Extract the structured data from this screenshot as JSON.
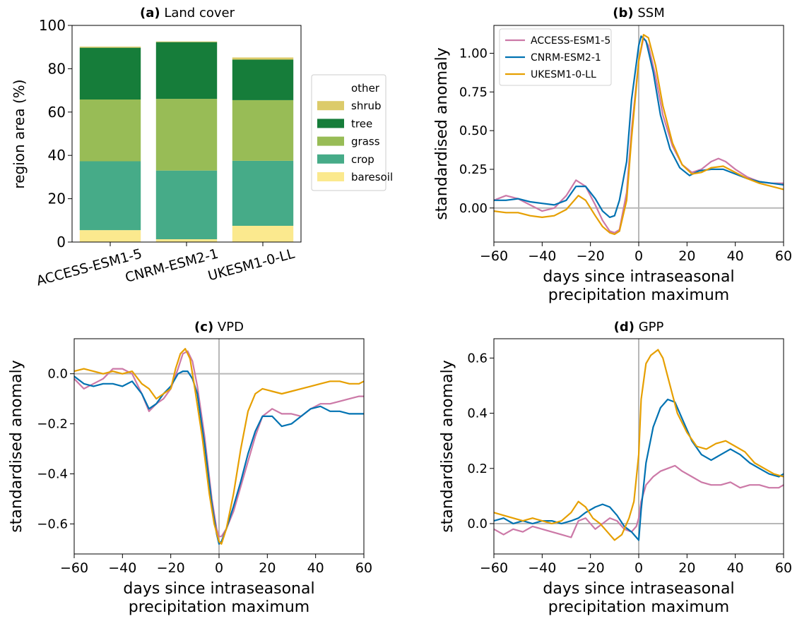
{
  "chart_data": [
    {
      "panel": "a",
      "type": "bar",
      "title_prefix": "(a)",
      "title": "Land cover",
      "xlabel": "",
      "ylabel": "region area (%)",
      "ylim": [
        0,
        100
      ],
      "yticks": [
        0,
        20,
        40,
        60,
        80,
        100
      ],
      "categories": [
        "ACCESS-ESM1-5",
        "CNRM-ESM2-1",
        "UKESM1-0-LL"
      ],
      "stacked": true,
      "legend_position": "right, outside axes",
      "series": [
        {
          "name": "baresoil",
          "color": "#fbe98e",
          "values": [
            5.5,
            1.3,
            7.5
          ]
        },
        {
          "name": "crop",
          "color": "#46ab88",
          "values": [
            31.8,
            31.7,
            30.0
          ]
        },
        {
          "name": "grass",
          "color": "#98bc56",
          "values": [
            28.5,
            33.1,
            28.0
          ]
        },
        {
          "name": "tree",
          "color": "#167d3a",
          "values": [
            23.9,
            26.2,
            18.7
          ]
        },
        {
          "name": "shrub",
          "color": "#dccb6a",
          "values": [
            0.5,
            0.3,
            1.0
          ]
        },
        {
          "name": "other",
          "color": "#ffffff",
          "values": [
            0,
            0,
            0
          ]
        }
      ]
    },
    {
      "panel": "b",
      "type": "line",
      "title_prefix": "(b)",
      "title": "SSM",
      "xlabel": "days since intraseasonal precipitation maximum",
      "xlabel_lines": [
        "days since intraseasonal",
        "precipitation maximum"
      ],
      "ylabel": "standardised anomaly",
      "xlim": [
        -60,
        60
      ],
      "ylim": [
        -0.22,
        1.18
      ],
      "xticks": [
        -60,
        -40,
        -20,
        0,
        20,
        40,
        60
      ],
      "xtick_labels": [
        "−60",
        "−40",
        "−20",
        "0",
        "20",
        "40",
        "60"
      ],
      "yticks": [
        0.0,
        0.25,
        0.5,
        0.75,
        1.0
      ],
      "ytick_labels": [
        "0.00",
        "0.25",
        "0.50",
        "0.75",
        "1.00"
      ],
      "legend_position": "top-left",
      "series": [
        {
          "name": "ACCESS-ESM1-5",
          "color": "#cc79a7",
          "x": [
            -60,
            -55,
            -50,
            -45,
            -40,
            -35,
            -30,
            -26,
            -22,
            -18,
            -15,
            -12,
            -10,
            -8,
            -5,
            -3,
            0,
            2,
            4,
            7,
            10,
            14,
            18,
            22,
            26,
            30,
            33,
            36,
            40,
            45,
            50,
            55,
            60
          ],
          "y": [
            0.05,
            0.08,
            0.06,
            0.02,
            -0.02,
            0.0,
            0.08,
            0.18,
            0.14,
            0.02,
            -0.08,
            -0.15,
            -0.16,
            -0.14,
            0.1,
            0.5,
            0.95,
            1.1,
            1.05,
            0.85,
            0.6,
            0.4,
            0.28,
            0.23,
            0.25,
            0.3,
            0.32,
            0.3,
            0.25,
            0.2,
            0.17,
            0.16,
            0.16
          ]
        },
        {
          "name": "CNRM-ESM2-1",
          "color": "#0072b2",
          "x": [
            -60,
            -55,
            -50,
            -45,
            -40,
            -35,
            -30,
            -26,
            -22,
            -18,
            -15,
            -12,
            -10,
            -8,
            -5,
            -3,
            0,
            1,
            3,
            6,
            9,
            13,
            17,
            21,
            25,
            30,
            35,
            40,
            45,
            50,
            55,
            60
          ],
          "y": [
            0.05,
            0.05,
            0.06,
            0.04,
            0.03,
            0.02,
            0.05,
            0.14,
            0.14,
            0.06,
            -0.02,
            -0.06,
            -0.05,
            0.05,
            0.3,
            0.7,
            1.05,
            1.11,
            1.08,
            0.88,
            0.6,
            0.38,
            0.26,
            0.21,
            0.24,
            0.25,
            0.25,
            0.22,
            0.19,
            0.17,
            0.16,
            0.15
          ]
        },
        {
          "name": "UKESM1-0-LL",
          "color": "#e69f00",
          "x": [
            -60,
            -55,
            -50,
            -45,
            -40,
            -35,
            -30,
            -25,
            -22,
            -18,
            -15,
            -12,
            -10,
            -8,
            -5,
            -3,
            0,
            2,
            4,
            7,
            10,
            14,
            18,
            22,
            26,
            30,
            35,
            40,
            45,
            50,
            55,
            60
          ],
          "y": [
            -0.02,
            -0.03,
            -0.03,
            -0.05,
            -0.06,
            -0.05,
            -0.01,
            0.08,
            0.05,
            -0.05,
            -0.12,
            -0.16,
            -0.17,
            -0.15,
            0.05,
            0.45,
            0.95,
            1.12,
            1.1,
            0.92,
            0.66,
            0.42,
            0.28,
            0.22,
            0.23,
            0.26,
            0.27,
            0.23,
            0.19,
            0.16,
            0.14,
            0.12
          ]
        }
      ]
    },
    {
      "panel": "c",
      "type": "line",
      "title_prefix": "(c)",
      "title": "VPD",
      "xlabel": "days since intraseasonal precipitation maximum",
      "xlabel_lines": [
        "days since intraseasonal",
        "precipitation maximum"
      ],
      "ylabel": "standardised anomaly",
      "xlim": [
        -60,
        60
      ],
      "ylim": [
        -0.72,
        0.14
      ],
      "xticks": [
        -60,
        -40,
        -20,
        0,
        20,
        40,
        60
      ],
      "xtick_labels": [
        "−60",
        "−40",
        "−20",
        "0",
        "20",
        "40",
        "60"
      ],
      "yticks": [
        -0.6,
        -0.4,
        -0.2,
        0.0
      ],
      "ytick_labels": [
        "−0.6",
        "−0.4",
        "−0.2",
        "0.0"
      ],
      "series": [
        {
          "name": "ACCESS-ESM1-5",
          "color": "#cc79a7",
          "x": [
            -60,
            -56,
            -52,
            -48,
            -44,
            -40,
            -36,
            -32,
            -29,
            -26,
            -23,
            -20,
            -17,
            -15,
            -13,
            -11,
            -9,
            -6,
            -3,
            -1,
            0,
            1,
            3,
            6,
            9,
            12,
            15,
            18,
            22,
            26,
            30,
            34,
            38,
            42,
            46,
            50,
            54,
            58,
            60
          ],
          "y": [
            -0.02,
            -0.06,
            -0.04,
            -0.02,
            0.02,
            0.02,
            0.0,
            -0.08,
            -0.15,
            -0.12,
            -0.1,
            -0.06,
            0.02,
            0.08,
            0.09,
            0.05,
            -0.05,
            -0.25,
            -0.5,
            -0.62,
            -0.65,
            -0.65,
            -0.62,
            -0.55,
            -0.45,
            -0.35,
            -0.25,
            -0.17,
            -0.14,
            -0.16,
            -0.16,
            -0.17,
            -0.14,
            -0.12,
            -0.12,
            -0.11,
            -0.1,
            -0.09,
            -0.09
          ]
        },
        {
          "name": "CNRM-ESM2-1",
          "color": "#0072b2",
          "x": [
            -60,
            -56,
            -52,
            -48,
            -44,
            -40,
            -36,
            -32,
            -29,
            -26,
            -23,
            -20,
            -17,
            -15,
            -13,
            -11,
            -9,
            -6,
            -3,
            -1,
            0,
            1,
            3,
            6,
            9,
            12,
            15,
            18,
            22,
            26,
            30,
            34,
            38,
            42,
            46,
            50,
            54,
            58,
            60
          ],
          "y": [
            -0.01,
            -0.04,
            -0.05,
            -0.04,
            -0.04,
            -0.05,
            -0.03,
            -0.08,
            -0.14,
            -0.12,
            -0.08,
            -0.05,
            0.0,
            0.01,
            0.01,
            -0.02,
            -0.08,
            -0.28,
            -0.52,
            -0.64,
            -0.68,
            -0.67,
            -0.62,
            -0.53,
            -0.43,
            -0.32,
            -0.23,
            -0.17,
            -0.17,
            -0.21,
            -0.2,
            -0.17,
            -0.14,
            -0.13,
            -0.15,
            -0.15,
            -0.16,
            -0.16,
            -0.16
          ]
        },
        {
          "name": "UKESM1-0-LL",
          "color": "#e69f00",
          "x": [
            -60,
            -56,
            -52,
            -48,
            -44,
            -40,
            -36,
            -32,
            -29,
            -26,
            -23,
            -20,
            -18,
            -16,
            -14,
            -12,
            -10,
            -7,
            -4,
            -2,
            0,
            1,
            3,
            6,
            9,
            12,
            15,
            18,
            22,
            26,
            30,
            34,
            38,
            42,
            46,
            50,
            54,
            58,
            60
          ],
          "y": [
            0.01,
            0.02,
            0.01,
            0.0,
            0.01,
            0.0,
            0.01,
            -0.04,
            -0.06,
            -0.1,
            -0.08,
            -0.06,
            0.02,
            0.08,
            0.1,
            0.06,
            -0.06,
            -0.25,
            -0.48,
            -0.6,
            -0.67,
            -0.68,
            -0.62,
            -0.48,
            -0.3,
            -0.15,
            -0.08,
            -0.06,
            -0.07,
            -0.08,
            -0.07,
            -0.06,
            -0.05,
            -0.04,
            -0.03,
            -0.03,
            -0.04,
            -0.04,
            -0.03
          ]
        }
      ]
    },
    {
      "panel": "d",
      "type": "line",
      "title_prefix": "(d)",
      "title": "GPP",
      "xlabel": "days since intraseasonal precipitation maximum",
      "xlabel_lines": [
        "days since intraseasonal",
        "precipitation maximum"
      ],
      "ylabel": "standardised anomaly",
      "xlim": [
        -60,
        60
      ],
      "ylim": [
        -0.11,
        0.67
      ],
      "xticks": [
        -60,
        -40,
        -20,
        0,
        20,
        40,
        60
      ],
      "xtick_labels": [
        "−60",
        "−40",
        "−20",
        "0",
        "20",
        "40",
        "60"
      ],
      "yticks": [
        0.0,
        0.2,
        0.4,
        0.6
      ],
      "ytick_labels": [
        "0.0",
        "0.2",
        "0.4",
        "0.6"
      ],
      "series": [
        {
          "name": "ACCESS-ESM1-5",
          "color": "#cc79a7",
          "x": [
            -60,
            -56,
            -52,
            -48,
            -44,
            -40,
            -36,
            -32,
            -28,
            -25,
            -22,
            -18,
            -15,
            -12,
            -9,
            -6,
            -3,
            -1,
            0,
            1,
            3,
            6,
            9,
            12,
            15,
            18,
            22,
            26,
            30,
            34,
            38,
            42,
            46,
            50,
            54,
            58,
            60
          ],
          "y": [
            -0.02,
            -0.04,
            -0.02,
            -0.03,
            -0.01,
            -0.02,
            -0.03,
            -0.04,
            -0.05,
            0.01,
            0.02,
            -0.02,
            0.0,
            0.02,
            0.01,
            -0.02,
            -0.03,
            -0.01,
            0.02,
            0.08,
            0.14,
            0.17,
            0.19,
            0.2,
            0.21,
            0.19,
            0.17,
            0.15,
            0.14,
            0.14,
            0.15,
            0.13,
            0.14,
            0.14,
            0.13,
            0.13,
            0.14
          ]
        },
        {
          "name": "CNRM-ESM2-1",
          "color": "#0072b2",
          "x": [
            -60,
            -56,
            -52,
            -48,
            -44,
            -40,
            -36,
            -32,
            -28,
            -25,
            -22,
            -18,
            -15,
            -12,
            -9,
            -6,
            -3,
            -1,
            0,
            1,
            3,
            6,
            9,
            12,
            15,
            18,
            22,
            26,
            30,
            34,
            38,
            42,
            46,
            50,
            54,
            58,
            60
          ],
          "y": [
            0.01,
            0.02,
            0.0,
            0.01,
            0.0,
            0.01,
            0.01,
            0.0,
            0.01,
            0.02,
            0.04,
            0.06,
            0.07,
            0.06,
            0.03,
            -0.01,
            -0.03,
            -0.05,
            -0.06,
            0.05,
            0.22,
            0.35,
            0.42,
            0.45,
            0.44,
            0.38,
            0.3,
            0.25,
            0.23,
            0.25,
            0.27,
            0.25,
            0.22,
            0.2,
            0.18,
            0.17,
            0.18
          ]
        },
        {
          "name": "UKESM1-0-LL",
          "color": "#e69f00",
          "x": [
            -60,
            -56,
            -52,
            -48,
            -44,
            -40,
            -36,
            -32,
            -28,
            -25,
            -22,
            -19,
            -16,
            -13,
            -10,
            -7,
            -4,
            -2,
            0,
            1,
            3,
            5,
            8,
            10,
            13,
            16,
            20,
            24,
            28,
            32,
            36,
            40,
            44,
            48,
            52,
            56,
            60
          ],
          "y": [
            0.04,
            0.03,
            0.02,
            0.01,
            0.02,
            0.01,
            0.0,
            0.01,
            0.04,
            0.08,
            0.06,
            0.02,
            0.0,
            -0.03,
            -0.06,
            -0.04,
            0.02,
            0.08,
            0.25,
            0.45,
            0.58,
            0.61,
            0.63,
            0.6,
            0.5,
            0.4,
            0.33,
            0.28,
            0.27,
            0.29,
            0.3,
            0.28,
            0.26,
            0.22,
            0.2,
            0.18,
            0.17
          ]
        }
      ]
    }
  ]
}
